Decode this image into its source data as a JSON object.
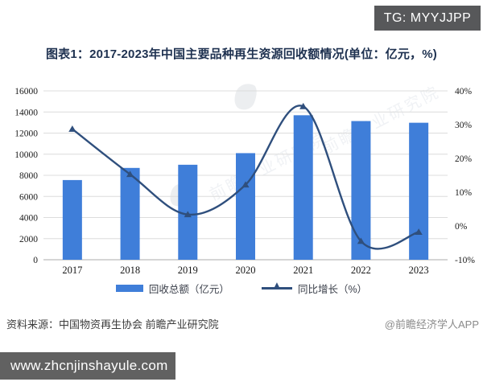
{
  "badge": {
    "text": "TG: MYYJJPP"
  },
  "title": "图表1：2017-2023年中国主要品种再生资源回收额情况(单位：亿元，%)",
  "chart_data": {
    "type": "bar+line combo",
    "categories": [
      "2017",
      "2018",
      "2019",
      "2020",
      "2021",
      "2022",
      "2023"
    ],
    "series": [
      {
        "name": "回收总额（亿元）",
        "type": "bar",
        "axis": "left",
        "values": [
          7550,
          8700,
          9000,
          10100,
          13690,
          13140,
          12980
        ],
        "color": "#3f7ed9"
      },
      {
        "name": "同比增长（%）",
        "type": "line",
        "axis": "right",
        "values": [
          28.7,
          15.3,
          3.4,
          12.2,
          35.4,
          -4.5,
          -1.8
        ],
        "color": "#2f4f7d"
      }
    ],
    "left_axis": {
      "min": 0,
      "max": 16000,
      "step": 2000,
      "ticks": [
        "0",
        "2000",
        "4000",
        "6000",
        "8000",
        "10000",
        "12000",
        "14000",
        "16000"
      ]
    },
    "right_axis": {
      "min": -10,
      "max": 40,
      "step": 10,
      "ticks": [
        "-10%",
        "0%",
        "10%",
        "20%",
        "30%",
        "40%"
      ]
    },
    "grid": true,
    "legend_position": "bottom",
    "watermark": "前瞻产业研究院"
  },
  "footer": {
    "source": "资料来源：中国物资再生协会 前瞻产业研究院",
    "credit": "@前瞻经济学人APP"
  },
  "bottom_bar": {
    "url": "www.zhcnjinshayule.com"
  }
}
